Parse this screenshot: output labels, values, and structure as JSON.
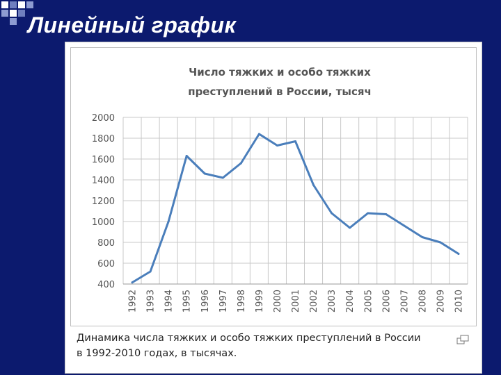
{
  "slide": {
    "title": "Линейный график"
  },
  "caption": {
    "line1": "Динамика числа тяжких и особо тяжких преступлений в России",
    "line2": "в 1992-2010 годах, в тысячах."
  },
  "colors": {
    "background": "#0c1a6e",
    "line": "#4a7ebb",
    "grid": "#c8c8c8"
  },
  "icons": {
    "enlarge": "enlarge-icon"
  },
  "chart_data": {
    "type": "line",
    "title": "Число тяжких и особо тяжких преступлений в России, тысяч",
    "title_lines": [
      "Число тяжких и особо тяжких",
      "преступлений в России, тысяч"
    ],
    "x": [
      "1992",
      "1993",
      "1994",
      "1995",
      "1996",
      "1997",
      "1998",
      "1999",
      "2000",
      "2001",
      "2002",
      "2003",
      "2004",
      "2005",
      "2006",
      "2007",
      "2008",
      "2009",
      "2010"
    ],
    "values": [
      415,
      520,
      1000,
      1630,
      1460,
      1420,
      1560,
      1840,
      1730,
      1770,
      1350,
      1080,
      940,
      1080,
      1070,
      960,
      850,
      800,
      690
    ],
    "ylim": [
      400,
      2000
    ],
    "yticks": [
      400,
      600,
      800,
      1000,
      1200,
      1400,
      1600,
      1800,
      2000
    ],
    "grid": true,
    "legend": "none"
  }
}
